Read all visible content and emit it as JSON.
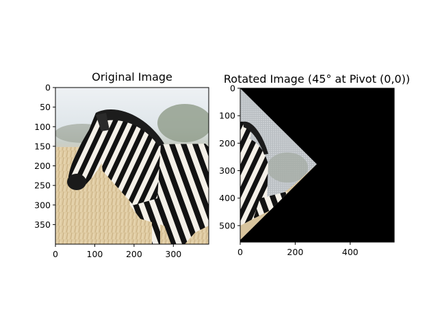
{
  "chart_data": [
    {
      "type": "image",
      "title": "Original Image",
      "image_subject": "zebra",
      "xlim": [
        0,
        390
      ],
      "ylim": [
        400,
        0
      ],
      "x_ticks": [
        0,
        100,
        200,
        300
      ],
      "y_ticks": [
        0,
        50,
        100,
        150,
        200,
        250,
        300,
        350
      ]
    },
    {
      "type": "image",
      "title": "Rotated Image (45° at Pivot (0,0))",
      "image_subject": "zebra rotated 45°",
      "background_color": "#000000",
      "xlim": [
        0,
        560
      ],
      "ylim": [
        560,
        0
      ],
      "x_ticks": [
        0,
        200,
        400
      ],
      "y_ticks": [
        0,
        100,
        200,
        300,
        400,
        500
      ]
    }
  ]
}
